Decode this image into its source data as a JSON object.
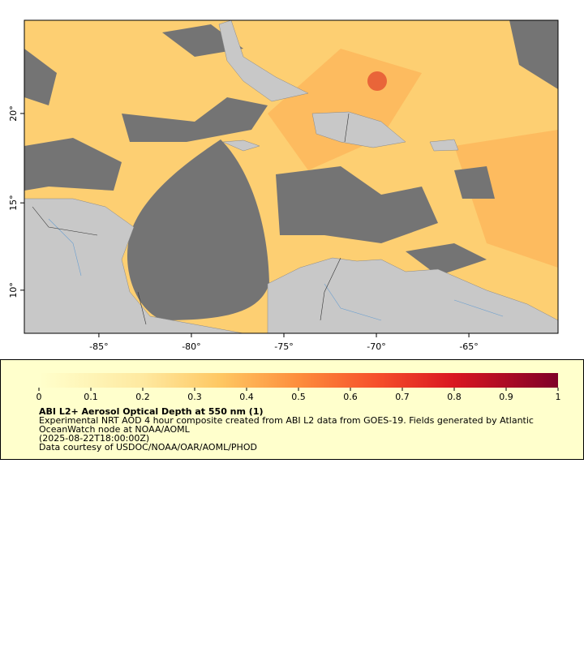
{
  "map": {
    "xlim": [
      -89.03,
      -60.18
    ],
    "ylim": [
      7.5,
      25.05
    ],
    "xticks": [
      {
        "value": -85,
        "label": "-85°"
      },
      {
        "value": -80,
        "label": "-80°"
      },
      {
        "value": -75,
        "label": "-75°"
      },
      {
        "value": -70,
        "label": "-70°"
      },
      {
        "value": -65,
        "label": "-65°"
      }
    ],
    "yticks": [
      {
        "value": 10,
        "label": "10°"
      },
      {
        "value": 15,
        "label": "15°"
      },
      {
        "value": 20,
        "label": "20°"
      }
    ]
  },
  "colorbar": {
    "lim": [
      0,
      1
    ],
    "ticks": [
      0,
      0.1,
      0.2,
      0.3,
      0.4,
      0.5,
      0.6,
      0.7,
      0.8,
      0.9,
      1
    ],
    "title": "ABI L2+ Aerosol Optical Depth at 550 nm (1)",
    "lines": [
      "Experimental NRT AOD 4 hour composite created from ABI L2 data from GOES-19. Fields generated by Atlantic",
      "OceanWatch node at NOAA/AOML",
      "(2025-08-22T18:00:00Z)",
      "Data courtesy of USDOC/NOAA/OAR/AOML/PHOD"
    ]
  }
}
